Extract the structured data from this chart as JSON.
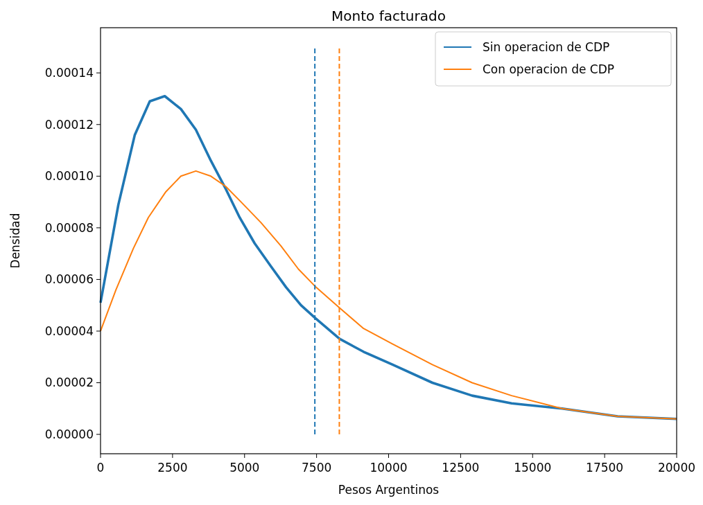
{
  "chart_data": {
    "type": "line",
    "title": "Monto facturado",
    "xlabel": "Pesos Argentinos",
    "ylabel": "Densidad",
    "xlim": [
      0,
      20000
    ],
    "ylim": [
      -7.5e-06,
      0.0001575
    ],
    "xticks": [
      0,
      2500,
      5000,
      7500,
      10000,
      12500,
      15000,
      17500,
      20000
    ],
    "yticks": [
      {
        "value": 0,
        "label": "0.00000"
      },
      {
        "value": 2e-05,
        "label": "0.00002"
      },
      {
        "value": 4e-05,
        "label": "0.00004"
      },
      {
        "value": 6e-05,
        "label": "0.00006"
      },
      {
        "value": 8e-05,
        "label": "0.00008"
      },
      {
        "value": 0.0001,
        "label": "0.00010"
      },
      {
        "value": 0.00012,
        "label": "0.00012"
      },
      {
        "value": 0.00014,
        "label": "0.00014"
      }
    ],
    "legend": "top right",
    "grid": false,
    "series": [
      {
        "name": "Sin operacion de CDP",
        "color": "#1f77b4",
        "x": [
          0,
          620,
          1190,
          1710,
          2230,
          2790,
          3310,
          3830,
          4350,
          4830,
          5350,
          5920,
          6440,
          6960,
          7460,
          8300,
          9130,
          10140,
          11520,
          12900,
          14270,
          16020,
          17950,
          20000
        ],
        "values": [
          5.1e-05,
          8.9e-05,
          0.000116,
          0.000129,
          0.000131,
          0.000126,
          0.000118,
          0.000106,
          9.5e-05,
          8.4e-05,
          7.4e-05,
          6.5e-05,
          5.7e-05,
          5e-05,
          4.5e-05,
          3.7e-05,
          3.2e-05,
          2.7e-05,
          2e-05,
          1.5e-05,
          1.2e-05,
          1e-05,
          7e-06,
          6e-06
        ]
      },
      {
        "name": "Con operacion de CDP",
        "color": "#ff7f0e",
        "x": [
          0,
          535,
          1140,
          1660,
          2270,
          2790,
          3310,
          3830,
          4350,
          4880,
          5570,
          6260,
          6870,
          7480,
          8300,
          9130,
          10140,
          11520,
          12900,
          14270,
          16020,
          17950,
          20000
        ],
        "values": [
          4e-05,
          5.6e-05,
          7.2e-05,
          8.4e-05,
          9.4e-05,
          0.0001,
          0.000102,
          0.0001,
          9.6e-05,
          9e-05,
          8.2e-05,
          7.3e-05,
          6.4e-05,
          5.7e-05,
          4.9e-05,
          4.1e-05,
          3.5e-05,
          2.7e-05,
          2e-05,
          1.5e-05,
          1e-05,
          7e-06,
          6e-06
        ]
      },
      {
        "color": "#1f77b4",
        "line_style": "dashed",
        "x": [
          7440,
          7440
        ],
        "values": [
          0,
          0.00015
        ]
      },
      {
        "color": "#ff7f0e",
        "line_style": "dashed",
        "x": [
          8290,
          8290
        ],
        "values": [
          0,
          0.00015
        ]
      }
    ]
  }
}
